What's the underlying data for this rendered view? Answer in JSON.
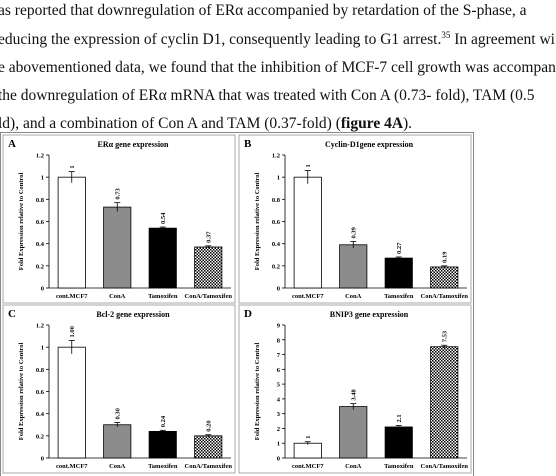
{
  "text": {
    "line1": "as reported that downregulation of ERα accompanied by retardation of the S-phase, a",
    "line2a": "educing the expression of cyclin D1, consequently leading to G1 arrest.",
    "line2sup": "35",
    "line2b": " In agreement wi",
    "line3": "e abovementioned data, we found that the inhibition of MCF-7 cell growth was accompan",
    "line4": "the downregulation of ERα mRNA that was treated with Con A (0.73- fold), TAM (0.5",
    "line5a": "ld), and a combination of Con A and TAM (0.37-fold) (",
    "line5b": "figure 4A",
    "line5c": ")."
  },
  "chart_data": [
    {
      "type": "bar",
      "label": "A",
      "title": "ERα gene expression",
      "y_label": "Fold Expression relative to Control",
      "categories": [
        "cont.MCF7",
        "ConA",
        "Tamoxifen",
        "ConA/Tamoxifen"
      ],
      "values": [
        1,
        0.73,
        0.54,
        0.37
      ],
      "value_labels": [
        "1",
        "0.73",
        "0.54",
        "0.37"
      ],
      "errors": [
        0.05,
        0.04,
        0.01,
        0.01
      ],
      "fills": [
        "#ffffff",
        "#8c8c8c",
        "#000000",
        "checkered"
      ],
      "ylim": [
        0,
        1.2
      ],
      "yticks": [
        0,
        0.2,
        0.4,
        0.6,
        0.8,
        1,
        1.2
      ]
    },
    {
      "type": "bar",
      "label": "B",
      "title": "Cyclin-D1gene expression",
      "y_label": "Fold Expression relative to Control",
      "categories": [
        "cont.MCF7",
        "ConA",
        "Tamoxifen",
        "ConA/Tamoxifen"
      ],
      "values": [
        1,
        0.39,
        0.27,
        0.19
      ],
      "value_labels": [
        "1",
        "0.39",
        "0.27",
        "0.19"
      ],
      "errors": [
        0.06,
        0.03,
        0.01,
        0.01
      ],
      "fills": [
        "#ffffff",
        "#8c8c8c",
        "#000000",
        "checkered"
      ],
      "ylim": [
        0,
        1.2
      ],
      "yticks": [
        0,
        0.2,
        0.4,
        0.6,
        0.8,
        1,
        1.2
      ]
    },
    {
      "type": "bar",
      "label": "C",
      "title": "Bcl-2 gene expression",
      "y_label": "Fold Expression relative to Control",
      "categories": [
        "cont.MCF7",
        "ConA",
        "Tamoxifen",
        "ConA/Tamoxifen"
      ],
      "values": [
        1,
        0.3,
        0.24,
        0.2
      ],
      "value_labels": [
        "1.00",
        "0.30",
        "0.24",
        "0.20"
      ],
      "errors": [
        0.06,
        0.02,
        0.01,
        0.01
      ],
      "fills": [
        "#ffffff",
        "#8c8c8c",
        "#000000",
        "checkered"
      ],
      "ylim": [
        0,
        1.2
      ],
      "yticks": [
        0,
        0.2,
        0.4,
        0.6,
        0.8,
        1,
        1.2
      ]
    },
    {
      "type": "bar",
      "label": "D",
      "title": "BNIP3 gene expression",
      "y_label": "Fold Expression relative to Control",
      "categories": [
        "cont.MCF7",
        "ConA",
        "Tamoxifen",
        "ConA/Tamoxifen"
      ],
      "values": [
        1,
        3.48,
        2.1,
        7.53
      ],
      "value_labels": [
        "1",
        "3.48",
        "2.1",
        "7.53"
      ],
      "errors": [
        0.1,
        0.2,
        0.1,
        0.1
      ],
      "fills": [
        "#ffffff",
        "#8c8c8c",
        "#000000",
        "checkered"
      ],
      "ylim": [
        0,
        9
      ],
      "yticks": [
        0,
        1,
        2,
        3,
        4,
        5,
        6,
        7,
        8,
        9
      ]
    }
  ]
}
